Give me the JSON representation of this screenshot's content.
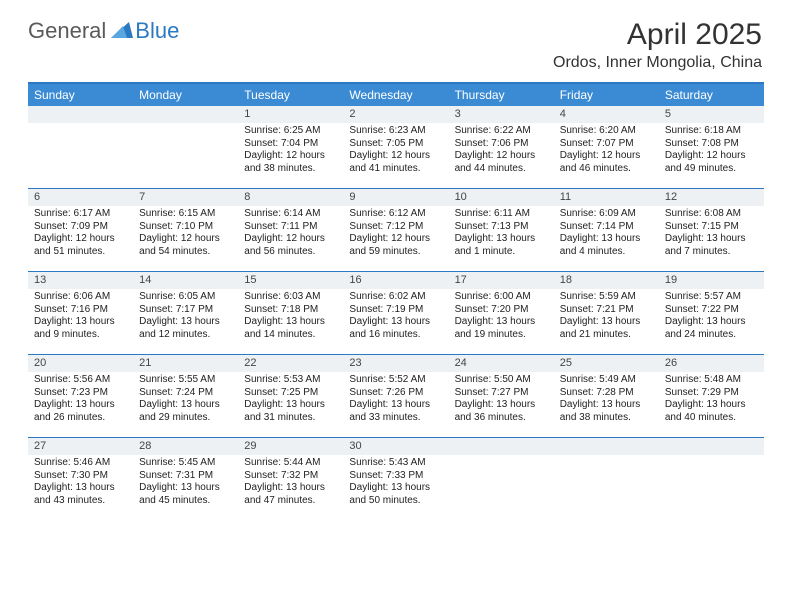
{
  "logo": {
    "general": "General",
    "blue": "Blue"
  },
  "title": "April 2025",
  "location": "Ordos, Inner Mongolia, China",
  "colors": {
    "accent": "#3b8bd4",
    "border": "#2b79c2",
    "cellNumBg": "#eef1f4",
    "text": "#222222",
    "logoGray": "#5a5a5a",
    "logoBlue": "#2b79c2"
  },
  "dayNames": [
    "Sunday",
    "Monday",
    "Tuesday",
    "Wednesday",
    "Thursday",
    "Friday",
    "Saturday"
  ],
  "weeks": [
    [
      {
        "n": "",
        "sr": "",
        "ss": "",
        "dl": ""
      },
      {
        "n": "",
        "sr": "",
        "ss": "",
        "dl": ""
      },
      {
        "n": "1",
        "sr": "Sunrise: 6:25 AM",
        "ss": "Sunset: 7:04 PM",
        "dl": "Daylight: 12 hours and 38 minutes."
      },
      {
        "n": "2",
        "sr": "Sunrise: 6:23 AM",
        "ss": "Sunset: 7:05 PM",
        "dl": "Daylight: 12 hours and 41 minutes."
      },
      {
        "n": "3",
        "sr": "Sunrise: 6:22 AM",
        "ss": "Sunset: 7:06 PM",
        "dl": "Daylight: 12 hours and 44 minutes."
      },
      {
        "n": "4",
        "sr": "Sunrise: 6:20 AM",
        "ss": "Sunset: 7:07 PM",
        "dl": "Daylight: 12 hours and 46 minutes."
      },
      {
        "n": "5",
        "sr": "Sunrise: 6:18 AM",
        "ss": "Sunset: 7:08 PM",
        "dl": "Daylight: 12 hours and 49 minutes."
      }
    ],
    [
      {
        "n": "6",
        "sr": "Sunrise: 6:17 AM",
        "ss": "Sunset: 7:09 PM",
        "dl": "Daylight: 12 hours and 51 minutes."
      },
      {
        "n": "7",
        "sr": "Sunrise: 6:15 AM",
        "ss": "Sunset: 7:10 PM",
        "dl": "Daylight: 12 hours and 54 minutes."
      },
      {
        "n": "8",
        "sr": "Sunrise: 6:14 AM",
        "ss": "Sunset: 7:11 PM",
        "dl": "Daylight: 12 hours and 56 minutes."
      },
      {
        "n": "9",
        "sr": "Sunrise: 6:12 AM",
        "ss": "Sunset: 7:12 PM",
        "dl": "Daylight: 12 hours and 59 minutes."
      },
      {
        "n": "10",
        "sr": "Sunrise: 6:11 AM",
        "ss": "Sunset: 7:13 PM",
        "dl": "Daylight: 13 hours and 1 minute."
      },
      {
        "n": "11",
        "sr": "Sunrise: 6:09 AM",
        "ss": "Sunset: 7:14 PM",
        "dl": "Daylight: 13 hours and 4 minutes."
      },
      {
        "n": "12",
        "sr": "Sunrise: 6:08 AM",
        "ss": "Sunset: 7:15 PM",
        "dl": "Daylight: 13 hours and 7 minutes."
      }
    ],
    [
      {
        "n": "13",
        "sr": "Sunrise: 6:06 AM",
        "ss": "Sunset: 7:16 PM",
        "dl": "Daylight: 13 hours and 9 minutes."
      },
      {
        "n": "14",
        "sr": "Sunrise: 6:05 AM",
        "ss": "Sunset: 7:17 PM",
        "dl": "Daylight: 13 hours and 12 minutes."
      },
      {
        "n": "15",
        "sr": "Sunrise: 6:03 AM",
        "ss": "Sunset: 7:18 PM",
        "dl": "Daylight: 13 hours and 14 minutes."
      },
      {
        "n": "16",
        "sr": "Sunrise: 6:02 AM",
        "ss": "Sunset: 7:19 PM",
        "dl": "Daylight: 13 hours and 16 minutes."
      },
      {
        "n": "17",
        "sr": "Sunrise: 6:00 AM",
        "ss": "Sunset: 7:20 PM",
        "dl": "Daylight: 13 hours and 19 minutes."
      },
      {
        "n": "18",
        "sr": "Sunrise: 5:59 AM",
        "ss": "Sunset: 7:21 PM",
        "dl": "Daylight: 13 hours and 21 minutes."
      },
      {
        "n": "19",
        "sr": "Sunrise: 5:57 AM",
        "ss": "Sunset: 7:22 PM",
        "dl": "Daylight: 13 hours and 24 minutes."
      }
    ],
    [
      {
        "n": "20",
        "sr": "Sunrise: 5:56 AM",
        "ss": "Sunset: 7:23 PM",
        "dl": "Daylight: 13 hours and 26 minutes."
      },
      {
        "n": "21",
        "sr": "Sunrise: 5:55 AM",
        "ss": "Sunset: 7:24 PM",
        "dl": "Daylight: 13 hours and 29 minutes."
      },
      {
        "n": "22",
        "sr": "Sunrise: 5:53 AM",
        "ss": "Sunset: 7:25 PM",
        "dl": "Daylight: 13 hours and 31 minutes."
      },
      {
        "n": "23",
        "sr": "Sunrise: 5:52 AM",
        "ss": "Sunset: 7:26 PM",
        "dl": "Daylight: 13 hours and 33 minutes."
      },
      {
        "n": "24",
        "sr": "Sunrise: 5:50 AM",
        "ss": "Sunset: 7:27 PM",
        "dl": "Daylight: 13 hours and 36 minutes."
      },
      {
        "n": "25",
        "sr": "Sunrise: 5:49 AM",
        "ss": "Sunset: 7:28 PM",
        "dl": "Daylight: 13 hours and 38 minutes."
      },
      {
        "n": "26",
        "sr": "Sunrise: 5:48 AM",
        "ss": "Sunset: 7:29 PM",
        "dl": "Daylight: 13 hours and 40 minutes."
      }
    ],
    [
      {
        "n": "27",
        "sr": "Sunrise: 5:46 AM",
        "ss": "Sunset: 7:30 PM",
        "dl": "Daylight: 13 hours and 43 minutes."
      },
      {
        "n": "28",
        "sr": "Sunrise: 5:45 AM",
        "ss": "Sunset: 7:31 PM",
        "dl": "Daylight: 13 hours and 45 minutes."
      },
      {
        "n": "29",
        "sr": "Sunrise: 5:44 AM",
        "ss": "Sunset: 7:32 PM",
        "dl": "Daylight: 13 hours and 47 minutes."
      },
      {
        "n": "30",
        "sr": "Sunrise: 5:43 AM",
        "ss": "Sunset: 7:33 PM",
        "dl": "Daylight: 13 hours and 50 minutes."
      },
      {
        "n": "",
        "sr": "",
        "ss": "",
        "dl": ""
      },
      {
        "n": "",
        "sr": "",
        "ss": "",
        "dl": ""
      },
      {
        "n": "",
        "sr": "",
        "ss": "",
        "dl": ""
      }
    ]
  ]
}
